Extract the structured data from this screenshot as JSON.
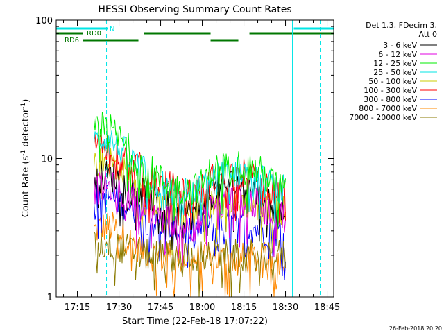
{
  "chart_data": {
    "type": "line",
    "title": "HESSI Observing Summary Count Rates",
    "xlabel": "Start Time (22-Feb-18 17:07:22)",
    "ylabel": "Count Rate (s⁻¹ detector⁻¹)",
    "ylabel_main": "Count Rate (s",
    "ylabel_exp1": "-1",
    "ylabel_mid": " detector",
    "ylabel_exp2": "-1",
    "ylabel_end": ")",
    "y_scale": "log",
    "ylim": [
      1,
      100
    ],
    "xlim": [
      "17:07:22",
      "18:47:22"
    ],
    "x_ticks": [
      "17:15",
      "17:30",
      "17:45",
      "18:00",
      "18:15",
      "18:30",
      "18:45"
    ],
    "y_ticks": [
      "1",
      "10",
      "100"
    ],
    "legend_title_line1": "Det 1,3, FDecim 3,",
    "legend_title_line2": "Att 0",
    "legend_position": "right",
    "timestamp": "26-Feb-2018 20:20",
    "flags": [
      {
        "label": "N",
        "color": "#00e5e5",
        "segments": [
          [
            "17:07:22",
            "17:26:00"
          ],
          [
            "18:33:00",
            "18:47:22"
          ]
        ]
      },
      {
        "label": "RD0",
        "color": "#007700",
        "segments": [
          [
            "17:07:22",
            "17:17:00"
          ],
          [
            "17:39:00",
            "18:03:00"
          ],
          [
            "18:17:00",
            "18:47:22"
          ]
        ]
      },
      {
        "label": "RD6",
        "color": "#007700",
        "segments": [
          [
            "17:17:00",
            "17:37:00"
          ],
          [
            "18:03:00",
            "18:13:00"
          ]
        ]
      }
    ],
    "vertical_lines": [
      {
        "time": "17:07:22",
        "color": "#00e5e5",
        "style": "solid"
      },
      {
        "time": "17:25:30",
        "color": "#00e5e5",
        "style": "dashed"
      },
      {
        "time": "18:32:30",
        "color": "#00e5e5",
        "style": "solid"
      },
      {
        "time": "18:42:30",
        "color": "#00e5e5",
        "style": "dashed"
      }
    ],
    "series": [
      {
        "name": "3 - 6 keV",
        "color": "#000000",
        "x": [
          "17:21",
          "17:24",
          "17:27",
          "17:30",
          "17:33",
          "17:36",
          "17:39",
          "17:42",
          "17:45",
          "17:48",
          "17:51",
          "17:54",
          "17:57",
          "18:00",
          "18:03",
          "18:06",
          "18:09",
          "18:12",
          "18:15",
          "18:18",
          "18:21",
          "18:24",
          "18:27",
          "18:30"
        ],
        "values": [
          7,
          7.5,
          7.5,
          7,
          6.5,
          6,
          5.5,
          5,
          4.5,
          4.5,
          4,
          4,
          4,
          4.5,
          5.5,
          6,
          6.5,
          6.5,
          6.5,
          6,
          5.5,
          5,
          4.8,
          4.6
        ]
      },
      {
        "name": "6 - 12 keV",
        "color": "#e000e0",
        "x": [
          "17:21",
          "17:24",
          "17:27",
          "17:30",
          "17:33",
          "17:36",
          "17:39",
          "17:42",
          "17:45",
          "17:48",
          "17:51",
          "17:54",
          "17:57",
          "18:00",
          "18:03",
          "18:06",
          "18:09",
          "18:12",
          "18:15",
          "18:18",
          "18:21",
          "18:24",
          "18:27",
          "18:30"
        ],
        "values": [
          6,
          6.2,
          6.2,
          5.8,
          5.4,
          5,
          4.6,
          4.2,
          3.8,
          3.6,
          3.4,
          3.3,
          3.3,
          3.5,
          4.2,
          4.6,
          5,
          5,
          5,
          4.8,
          4.5,
          4.2,
          4,
          3.8
        ]
      },
      {
        "name": "12 - 25 keV",
        "color": "#00ee00",
        "x": [
          "17:21",
          "17:24",
          "17:27",
          "17:30",
          "17:33",
          "17:36",
          "17:39",
          "17:42",
          "17:45",
          "17:48",
          "17:51",
          "17:54",
          "17:57",
          "18:00",
          "18:03",
          "18:06",
          "18:09",
          "18:12",
          "18:15",
          "18:18",
          "18:21",
          "18:24",
          "18:27",
          "18:30"
        ],
        "values": [
          15,
          16.5,
          16,
          14,
          12,
          10,
          9,
          8,
          7,
          6.5,
          6,
          6,
          6,
          6.5,
          8,
          8.5,
          9,
          9,
          9,
          8.5,
          8,
          7,
          6.5,
          6
        ]
      },
      {
        "name": "25 - 50 keV",
        "color": "#00e5e5",
        "x": [
          "17:21",
          "17:24",
          "17:27",
          "17:30",
          "17:33",
          "17:36",
          "17:39",
          "17:42",
          "17:45",
          "17:48",
          "17:51",
          "17:54",
          "17:57",
          "18:00",
          "18:03",
          "18:06",
          "18:09",
          "18:12",
          "18:15",
          "18:18",
          "18:21",
          "18:24",
          "18:27",
          "18:30"
        ],
        "values": [
          13,
          14,
          13.5,
          12,
          10.5,
          9,
          8,
          7,
          6.5,
          6,
          5.8,
          5.6,
          5.6,
          6,
          7,
          7.5,
          8,
          8,
          8,
          7.5,
          7,
          6.5,
          6,
          5.8
        ]
      },
      {
        "name": "50 - 100 keV",
        "color": "#cccc00",
        "x": [
          "17:21",
          "17:24",
          "17:27",
          "17:30",
          "17:33",
          "17:36",
          "17:39",
          "17:42",
          "17:45",
          "17:48",
          "17:51",
          "17:54",
          "17:57",
          "18:00",
          "18:03",
          "18:06",
          "18:09",
          "18:12",
          "18:15",
          "18:18",
          "18:21",
          "18:24",
          "18:27",
          "18:30"
        ],
        "values": [
          9,
          9.5,
          9.5,
          8.5,
          7.5,
          6.5,
          5.5,
          5,
          4.6,
          4.4,
          4.2,
          4.2,
          4.2,
          4.4,
          4.6,
          4.8,
          4.8,
          4.8,
          4.8,
          4.6,
          4.5,
          4.4,
          4.3,
          4.2
        ]
      },
      {
        "name": "100 - 300 keV",
        "color": "#ff0000",
        "x": [
          "17:21",
          "17:24",
          "17:27",
          "17:30",
          "17:33",
          "17:36",
          "17:39",
          "17:42",
          "17:45",
          "17:48",
          "17:51",
          "17:54",
          "17:57",
          "18:00",
          "18:03",
          "18:06",
          "18:09",
          "18:12",
          "18:15",
          "18:18",
          "18:21",
          "18:24",
          "18:27",
          "18:30"
        ],
        "values": [
          12,
          13,
          12.5,
          11,
          10,
          9,
          8,
          7,
          6.5,
          6.2,
          6,
          5.8,
          5.8,
          6,
          7,
          7.5,
          7.8,
          7.8,
          7.8,
          7.5,
          7,
          6.5,
          6,
          5.8
        ]
      },
      {
        "name": "300 - 800 keV",
        "color": "#0000ff",
        "x": [
          "17:21",
          "17:24",
          "17:27",
          "17:30",
          "17:33",
          "17:36",
          "17:39",
          "17:42",
          "17:45",
          "17:48",
          "17:51",
          "17:54",
          "17:57",
          "18:00",
          "18:03",
          "18:06",
          "18:09",
          "18:12",
          "18:15",
          "18:18",
          "18:21",
          "18:24",
          "18:27",
          "18:30"
        ],
        "values": [
          5,
          5.2,
          5.2,
          5,
          4.6,
          4.2,
          3.8,
          3.5,
          3.3,
          3.2,
          3.1,
          3,
          3,
          3.1,
          3.2,
          3.3,
          3.3,
          3.3,
          3.3,
          3.2,
          3.1,
          3,
          3,
          2.9
        ]
      },
      {
        "name": "800 - 7000 keV",
        "color": "#ff8800",
        "x": [
          "17:21",
          "17:24",
          "17:27",
          "17:30",
          "17:33",
          "17:36",
          "17:39",
          "17:42",
          "17:45",
          "17:48",
          "17:51",
          "17:54",
          "17:57",
          "18:00",
          "18:03",
          "18:06",
          "18:09",
          "18:12",
          "18:15",
          "18:18",
          "18:21",
          "18:24",
          "18:27",
          "18:30"
        ],
        "values": [
          3,
          3.2,
          3.2,
          3,
          2.6,
          2.4,
          2.2,
          2,
          1.9,
          1.9,
          1.9,
          1.9,
          1.9,
          1.9,
          1.9,
          1.9,
          1.9,
          1.9,
          1.9,
          1.9,
          1.9,
          1.9,
          1.9,
          1.9
        ]
      },
      {
        "name": "7000 - 20000 keV",
        "color": "#8a7a00",
        "x": [
          "17:21",
          "17:24",
          "17:27",
          "17:30",
          "17:33",
          "17:36",
          "17:39",
          "17:42",
          "17:45",
          "17:48",
          "17:51",
          "17:54",
          "17:57",
          "18:00",
          "18:03",
          "18:06",
          "18:09",
          "18:12",
          "18:15",
          "18:18",
          "18:21",
          "18:24",
          "18:27",
          "18:30"
        ],
        "values": [
          2.3,
          2.4,
          2.4,
          2.3,
          2.2,
          2.1,
          2,
          2,
          2,
          2,
          2,
          2,
          2,
          2,
          2,
          2,
          2,
          2,
          2,
          2,
          2,
          2,
          2,
          2
        ]
      }
    ],
    "draw_order": [
      7,
      6,
      4,
      0,
      1,
      5,
      3,
      2,
      8
    ]
  }
}
